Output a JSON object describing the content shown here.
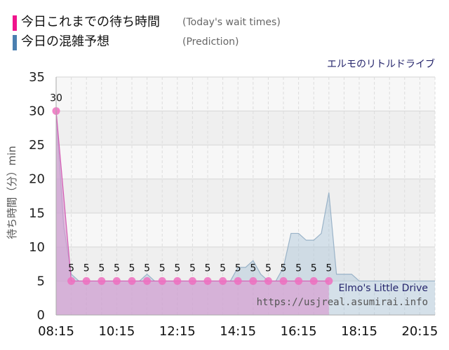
{
  "legend": {
    "actual_label": "今日これまでの待ち時間",
    "actual_note": "(Today's wait times)",
    "actual_color": "#f0148c",
    "prediction_label": "今日の混雑予想",
    "prediction_note": "(Prediction)",
    "prediction_color": "#4a7fb0"
  },
  "attraction_name": "エルモのリトルドライブ",
  "watermark": {
    "line1": "Elmo's Little Drive",
    "line2": "https://usjreal.asumirai.info"
  },
  "chart_data": {
    "type": "area",
    "ylabel": "待ち時間（分）min",
    "ylim": [
      0,
      35
    ],
    "yticks": [
      0,
      5,
      10,
      15,
      20,
      25,
      30,
      35
    ],
    "xlim": [
      "08:15",
      "20:45"
    ],
    "xticks": [
      "08:15",
      "10:15",
      "12:15",
      "14:15",
      "16:15",
      "18:15",
      "20:15"
    ],
    "grid": true,
    "series": [
      {
        "name": "今日これまでの待ち時間",
        "x": [
          "08:15",
          "08:45",
          "09:15",
          "09:45",
          "10:15",
          "10:45",
          "11:15",
          "11:45",
          "12:15",
          "12:45",
          "13:15",
          "13:45",
          "14:15",
          "14:45",
          "15:15",
          "15:45",
          "16:15",
          "16:45",
          "17:15"
        ],
        "values": [
          30,
          5,
          5,
          5,
          5,
          5,
          5,
          5,
          5,
          5,
          5,
          5,
          5,
          5,
          5,
          5,
          5,
          5,
          5
        ],
        "color": "#f0148c"
      },
      {
        "name": "今日の混雑予想",
        "x": [
          "08:15",
          "08:30",
          "08:45",
          "09:00",
          "09:15",
          "09:30",
          "09:45",
          "10:00",
          "10:15",
          "10:30",
          "10:45",
          "11:00",
          "11:15",
          "11:30",
          "11:45",
          "12:00",
          "12:15",
          "12:30",
          "12:45",
          "13:00",
          "13:15",
          "13:30",
          "13:45",
          "14:00",
          "14:15",
          "14:30",
          "14:45",
          "15:00",
          "15:15",
          "15:30",
          "15:45",
          "16:00",
          "16:15",
          "16:30",
          "16:45",
          "17:00",
          "17:15",
          "17:30",
          "17:45",
          "18:00",
          "18:15",
          "18:30",
          "18:45",
          "19:00",
          "19:15",
          "19:30",
          "19:45",
          "20:00",
          "20:15",
          "20:30",
          "20:45"
        ],
        "values": [
          30,
          13,
          6,
          5,
          5,
          5,
          5,
          5,
          5,
          5,
          5,
          5,
          6,
          5,
          5,
          5,
          5,
          5,
          5,
          5,
          5,
          5,
          5,
          5,
          7,
          7,
          8,
          6,
          5,
          5,
          7,
          12,
          12,
          11,
          11,
          12,
          18,
          6,
          6,
          6,
          5,
          5,
          5,
          5,
          5,
          5,
          5,
          5,
          5,
          5,
          5
        ],
        "color": "#4a7fb0"
      }
    ]
  }
}
